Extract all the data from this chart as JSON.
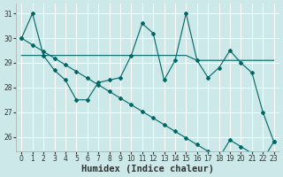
{
  "xlabel": "Humidex (Indice chaleur)",
  "background_color": "#cce8e8",
  "grid_color": "#ffffff",
  "line_color": "#006666",
  "x_data": [
    0,
    1,
    2,
    3,
    4,
    5,
    6,
    7,
    8,
    9,
    10,
    11,
    12,
    13,
    14,
    15,
    16,
    17,
    18,
    19,
    20,
    21,
    22,
    23
  ],
  "line1_y": [
    30.0,
    31.0,
    29.3,
    28.7,
    28.3,
    27.5,
    27.5,
    28.2,
    28.3,
    28.4,
    29.3,
    30.6,
    30.2,
    28.3,
    29.1,
    31.0,
    29.1,
    28.4,
    28.8,
    29.5,
    29.0,
    28.6,
    27.0,
    25.8
  ],
  "line2_y": [
    29.3,
    29.3,
    29.3,
    29.3,
    29.3,
    29.3,
    29.3,
    29.3,
    29.3,
    29.3,
    29.3,
    29.3,
    29.3,
    29.3,
    29.3,
    29.3,
    29.1,
    29.1,
    29.1,
    29.1,
    29.1,
    29.1,
    29.1,
    29.1
  ],
  "line3_y": [
    30.0,
    29.73,
    29.46,
    29.19,
    28.92,
    28.65,
    28.38,
    28.11,
    27.84,
    27.57,
    27.3,
    27.03,
    26.76,
    26.49,
    26.22,
    25.95,
    25.68,
    25.41,
    25.14,
    25.87,
    25.6,
    25.33,
    25.06,
    25.8
  ],
  "ylim": [
    25.4,
    31.4
  ],
  "xlim": [
    -0.5,
    23.5
  ],
  "yticks": [
    26,
    27,
    28,
    29,
    30,
    31
  ],
  "xticks": [
    0,
    1,
    2,
    3,
    4,
    5,
    6,
    7,
    8,
    9,
    10,
    11,
    12,
    13,
    14,
    15,
    16,
    17,
    18,
    19,
    20,
    21,
    22,
    23
  ],
  "tick_fontsize": 5.5,
  "xlabel_fontsize": 7.5,
  "marker_size": 2.0,
  "linewidth": 0.8
}
